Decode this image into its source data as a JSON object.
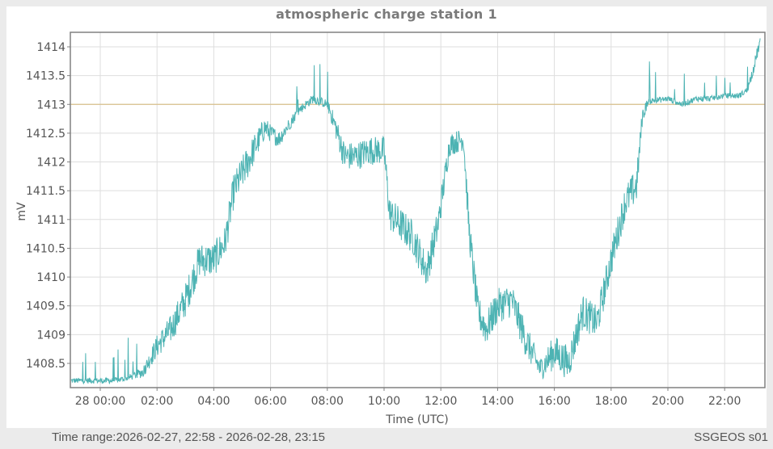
{
  "title": "atmospheric charge station 1",
  "footer": {
    "time_range_label": "Time range:",
    "time_range_value": "2026-02-27, 22:58 - 2026-02-28, 23:15",
    "station_id": "SSGEOS s01"
  },
  "colors": {
    "series": "#4db3b3",
    "reference_line": "#d9c08c",
    "grid": "#dedede",
    "axis": "#808080",
    "background": "#ebebeb",
    "panel": "#ffffff"
  },
  "chart_data": {
    "type": "line",
    "title": "atmospheric charge station 1",
    "xlabel": "Time (UTC)",
    "ylabel": "mV",
    "x_unit": "hours since 2026-02-28 00:00 UTC",
    "xlim": [
      -1.03,
      23.25
    ],
    "ylim": [
      1408.15,
      1414.25
    ],
    "grid": true,
    "legend": null,
    "y_ticks": [
      1414,
      1413.5,
      1413,
      1412.5,
      1412,
      1411.5,
      1411,
      1410.5,
      1410,
      1409.5,
      1409,
      1408.5
    ],
    "y_tick_labels": [
      "1414",
      "1413.5",
      "1413",
      "1412.5",
      "1412",
      "1411.5",
      "1411",
      "1410.5",
      "1410",
      "1409.5",
      "1409",
      "1408.5"
    ],
    "x_ticks": [
      0,
      2,
      4,
      6,
      8,
      10,
      12,
      14,
      16,
      18,
      20,
      22
    ],
    "x_tick_labels": [
      "28 00:00",
      "02:00",
      "04:00",
      "06:00",
      "08:00",
      "10:00",
      "12:00",
      "14:00",
      "16:00",
      "18:00",
      "20:00",
      "22:00"
    ],
    "reference_line": {
      "y": 1413,
      "color": "#d9c08c"
    },
    "series": [
      {
        "name": "atmospheric charge",
        "color": "#4db3b3",
        "x": [
          -1.03,
          -0.5,
          0.0,
          0.5,
          1.0,
          1.5,
          2.0,
          2.5,
          3.0,
          3.5,
          4.0,
          4.4,
          4.7,
          5.2,
          5.8,
          6.0,
          6.3,
          7.0,
          7.5,
          8.0,
          8.3,
          8.6,
          9.0,
          9.5,
          10.0,
          10.2,
          10.6,
          11.0,
          11.5,
          11.9,
          12.3,
          12.8,
          13.0,
          13.3,
          13.6,
          14.0,
          14.5,
          15.0,
          15.5,
          16.0,
          16.5,
          17.0,
          17.5,
          18.0,
          18.5,
          18.9,
          19.1,
          19.3,
          20.0,
          20.5,
          21.0,
          21.5,
          22.0,
          22.5,
          22.8,
          23.0,
          23.25
        ],
        "y": [
          1408.2,
          1408.2,
          1408.2,
          1408.2,
          1408.25,
          1408.35,
          1408.8,
          1409.1,
          1409.6,
          1410.3,
          1410.3,
          1410.6,
          1411.5,
          1412.0,
          1412.6,
          1412.5,
          1412.4,
          1412.9,
          1413.1,
          1413.0,
          1412.6,
          1412.1,
          1412.1,
          1412.2,
          1412.2,
          1411.1,
          1410.9,
          1410.7,
          1410.1,
          1410.9,
          1412.3,
          1412.4,
          1410.8,
          1409.4,
          1409.1,
          1409.5,
          1409.6,
          1408.9,
          1408.4,
          1408.7,
          1408.5,
          1409.4,
          1409.2,
          1410.3,
          1411.3,
          1411.6,
          1412.8,
          1413.05,
          1413.1,
          1413.0,
          1413.1,
          1413.1,
          1413.15,
          1413.15,
          1413.25,
          1413.6,
          1414.1
        ],
        "noise_amplitude_mV": [
          0.05,
          0.05,
          0.05,
          0.05,
          0.05,
          0.1,
          0.2,
          0.25,
          0.3,
          0.3,
          0.3,
          0.3,
          0.3,
          0.3,
          0.2,
          0.15,
          0.15,
          0.08,
          0.08,
          0.08,
          0.2,
          0.25,
          0.25,
          0.25,
          0.25,
          0.3,
          0.3,
          0.3,
          0.3,
          0.3,
          0.2,
          0.2,
          0.3,
          0.3,
          0.3,
          0.3,
          0.3,
          0.3,
          0.2,
          0.3,
          0.3,
          0.3,
          0.3,
          0.3,
          0.3,
          0.3,
          0.15,
          0.06,
          0.05,
          0.05,
          0.05,
          0.05,
          0.05,
          0.05,
          0.05,
          0.1,
          0.1
        ]
      }
    ]
  }
}
